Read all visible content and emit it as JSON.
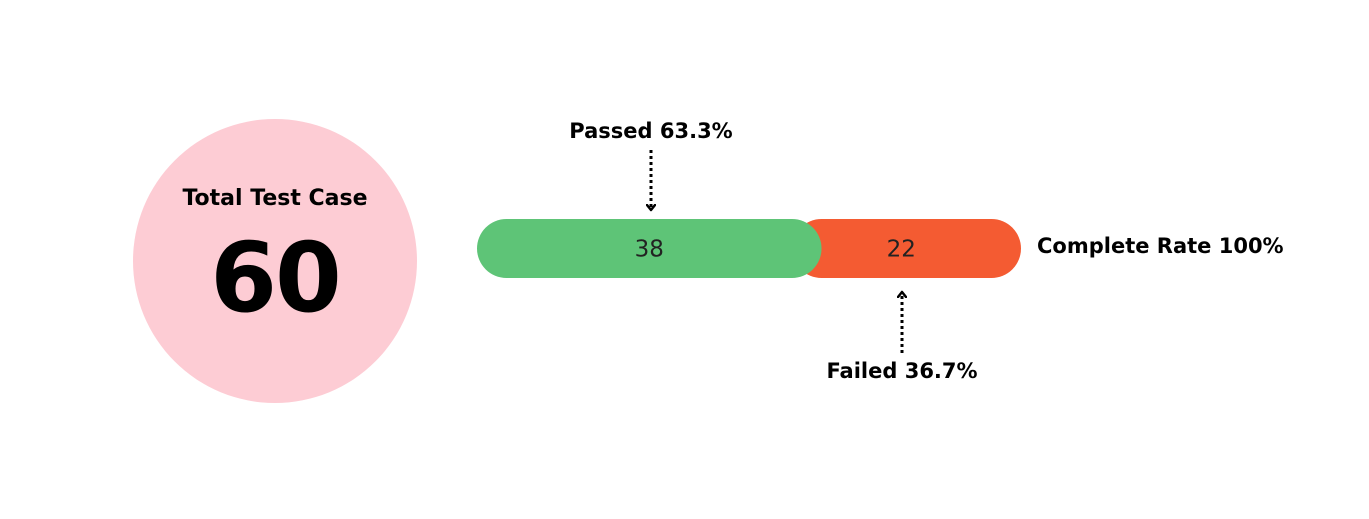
{
  "summary": {
    "title": "Total Test Case",
    "total": 60,
    "circle_color": "#fdccd4"
  },
  "chart_data": {
    "type": "bar",
    "orientation": "horizontal",
    "stacked": true,
    "total": 60,
    "categories": [
      "Passed",
      "Failed"
    ],
    "values": [
      38,
      22
    ],
    "colors": [
      "#5ec477",
      "#f45b32"
    ],
    "annotations": {
      "passed": "Passed 63.3%",
      "failed": "Failed 36.7%",
      "complete": "Complete Rate 100%"
    }
  }
}
